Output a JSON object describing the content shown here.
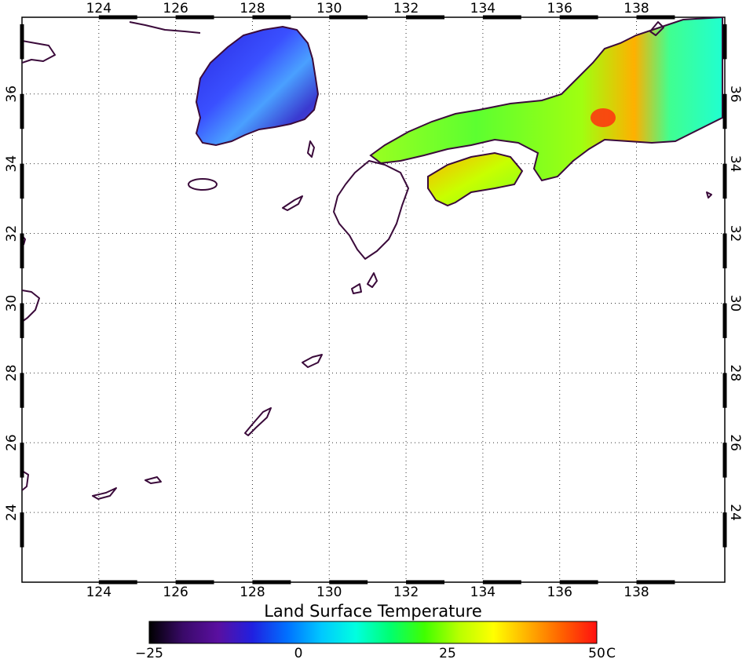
{
  "title": "Land Surface Temperature",
  "map": {
    "lon_min": 122.0,
    "lon_max": 140.3,
    "lat_min": 22.0,
    "lat_max": 38.2,
    "lon_ticks": [
      124,
      126,
      128,
      130,
      132,
      134,
      136,
      138
    ],
    "lat_ticks": [
      24,
      26,
      28,
      30,
      32,
      34,
      36
    ]
  },
  "colorbar": {
    "min": -25,
    "max": 50,
    "unit": "C",
    "tick_values": [
      -25,
      0,
      25,
      50
    ],
    "tick_labels": [
      "−25",
      "0",
      "25",
      "50"
    ],
    "colors": [
      "#000000",
      "#3a0a6a",
      "#5a0fa0",
      "#2020e0",
      "#0070ff",
      "#00c8ff",
      "#00ffe0",
      "#00ff70",
      "#40ff00",
      "#b8ff00",
      "#ffff00",
      "#ffb000",
      "#ff6000",
      "#ff1010"
    ]
  }
}
